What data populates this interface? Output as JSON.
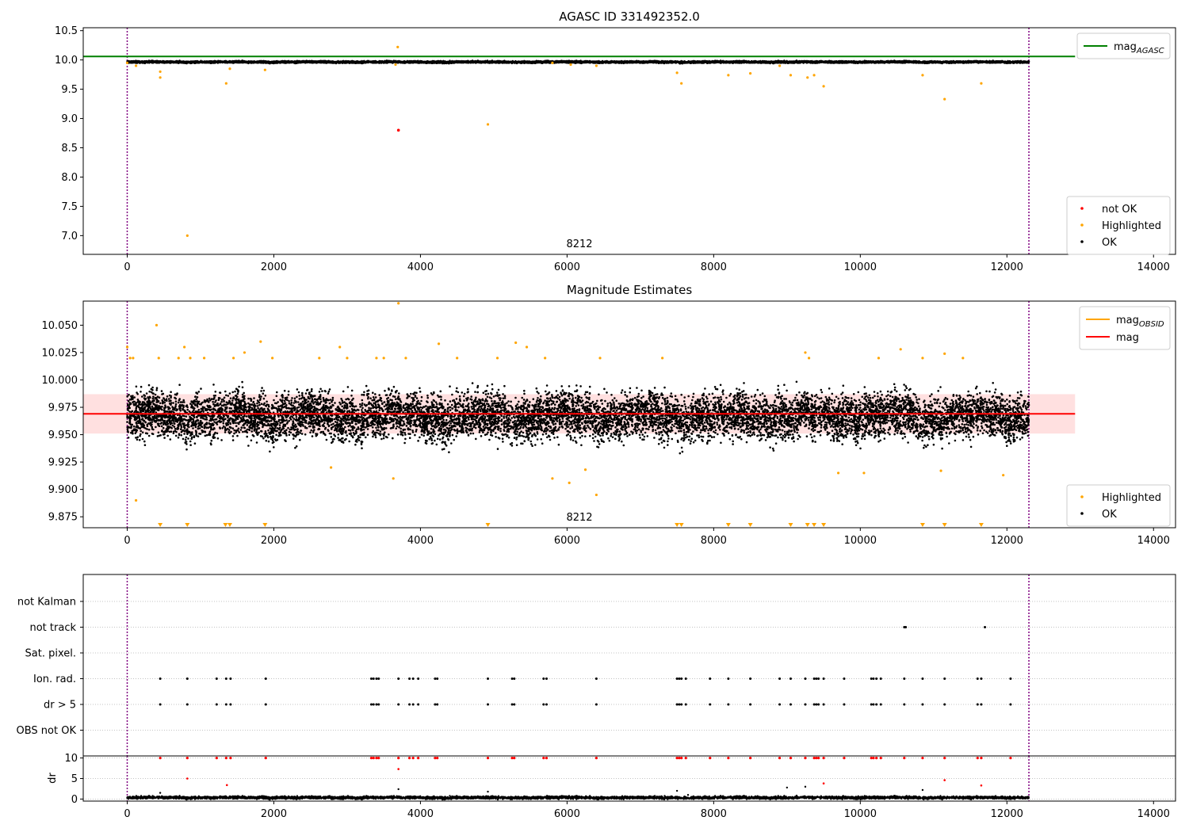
{
  "colors": {
    "ok": "#000000",
    "highlighted": "#ffa500",
    "not_ok": "#ff0000",
    "agasc_line": "#008000",
    "mag_line": "#ff0000",
    "mag_band": "#ffcccc",
    "obsid_line": "#ffa500",
    "vline": "#800080",
    "grid": "#b0b0b0"
  },
  "chart_data": [
    {
      "type": "scatter",
      "title": "AGASC ID 331492352.0",
      "xlim": [
        -600,
        14300
      ],
      "ylim": [
        6.68,
        10.55
      ],
      "xticks": [
        0,
        2000,
        4000,
        6000,
        8000,
        10000,
        12000,
        14000
      ],
      "yticks": [
        7.0,
        7.5,
        8.0,
        8.5,
        9.0,
        9.5,
        10.0,
        10.5
      ],
      "ytick_labels": [
        "7.0",
        "7.5",
        "8.0",
        "8.5",
        "9.0",
        "9.5",
        "10.0",
        "10.5"
      ],
      "annotation": {
        "text": "8212",
        "x": 6150,
        "y": 6.8
      },
      "vlines": [
        0,
        12300
      ],
      "mag_agasc": 10.06,
      "ok_band": {
        "x": [
          0,
          12300
        ],
        "center": 9.965,
        "spread": 0.025
      },
      "highlighted": [
        [
          0,
          9.95
        ],
        [
          120,
          9.9
        ],
        [
          450,
          9.8
        ],
        [
          450,
          9.7
        ],
        [
          820,
          7.0
        ],
        [
          1350,
          9.6
        ],
        [
          1400,
          9.85
        ],
        [
          1880,
          9.83
        ],
        [
          3690,
          10.22
        ],
        [
          3660,
          9.92
        ],
        [
          4920,
          8.9
        ],
        [
          5800,
          9.95
        ],
        [
          6050,
          9.92
        ],
        [
          6400,
          9.9
        ],
        [
          7500,
          9.78
        ],
        [
          7560,
          9.6
        ],
        [
          8200,
          9.74
        ],
        [
          8500,
          9.77
        ],
        [
          8900,
          9.9
        ],
        [
          9050,
          9.74
        ],
        [
          9280,
          9.7
        ],
        [
          9370,
          9.74
        ],
        [
          9500,
          9.55
        ],
        [
          10850,
          9.74
        ],
        [
          11150,
          9.33
        ],
        [
          11650,
          9.6
        ]
      ],
      "not_ok": [
        [
          3700,
          8.8
        ]
      ],
      "legend_lines": [
        {
          "label_main": "mag",
          "label_sub": "AGASC",
          "color": "#008000"
        }
      ],
      "legend_points": [
        {
          "label": "not OK",
          "color": "#ff0000"
        },
        {
          "label": "Highlighted",
          "color": "#ffa500"
        },
        {
          "label": "OK",
          "color": "#000000"
        }
      ]
    },
    {
      "type": "scatter",
      "title": "Magnitude Estimates",
      "xlim": [
        -600,
        14300
      ],
      "ylim": [
        9.865,
        10.072
      ],
      "xticks": [
        0,
        2000,
        4000,
        6000,
        8000,
        10000,
        12000,
        14000
      ],
      "yticks": [
        9.875,
        9.9,
        9.925,
        9.95,
        9.975,
        10.0,
        10.025,
        10.05
      ],
      "ytick_labels": [
        "9.875",
        "9.900",
        "9.925",
        "9.950",
        "9.975",
        "10.000",
        "10.025",
        "10.050"
      ],
      "annotation": {
        "text": "8212",
        "x": 6150,
        "y": 9.874
      },
      "vlines": [
        0,
        12300
      ],
      "mag": 9.969,
      "mag_band": [
        9.951,
        9.987
      ],
      "ok_band": {
        "x": [
          0,
          12300
        ],
        "center": 9.967,
        "spread": 0.018
      },
      "highlighted": [
        [
          0,
          10.03
        ],
        [
          40,
          10.02
        ],
        [
          80,
          10.02
        ],
        [
          120,
          9.89
        ],
        [
          400,
          10.05
        ],
        [
          430,
          10.02
        ],
        [
          700,
          10.02
        ],
        [
          780,
          10.03
        ],
        [
          860,
          10.02
        ],
        [
          1050,
          10.02
        ],
        [
          1450,
          10.02
        ],
        [
          1600,
          10.025
        ],
        [
          1820,
          10.035
        ],
        [
          1980,
          10.02
        ],
        [
          2620,
          10.02
        ],
        [
          2780,
          9.92
        ],
        [
          2900,
          10.03
        ],
        [
          3000,
          10.02
        ],
        [
          3400,
          10.02
        ],
        [
          3500,
          10.02
        ],
        [
          3630,
          9.91
        ],
        [
          3700,
          10.07
        ],
        [
          3800,
          10.02
        ],
        [
          4250,
          10.033
        ],
        [
          4500,
          10.02
        ],
        [
          5050,
          10.02
        ],
        [
          5300,
          10.034
        ],
        [
          5450,
          10.03
        ],
        [
          5700,
          10.02
        ],
        [
          5800,
          9.91
        ],
        [
          6030,
          9.906
        ],
        [
          6250,
          9.918
        ],
        [
          6400,
          9.895
        ],
        [
          6450,
          10.02
        ],
        [
          7300,
          10.02
        ],
        [
          9250,
          10.025
        ],
        [
          9300,
          10.02
        ],
        [
          9700,
          9.915
        ],
        [
          10050,
          9.915
        ],
        [
          10250,
          10.02
        ],
        [
          10550,
          10.028
        ],
        [
          10850,
          10.02
        ],
        [
          11100,
          9.917
        ],
        [
          11150,
          10.024
        ],
        [
          11400,
          10.02
        ],
        [
          11950,
          9.913
        ]
      ],
      "highlighted_below": [
        450,
        820,
        1340,
        1400,
        1880,
        4920,
        7500,
        7560,
        8200,
        8500,
        9050,
        9280,
        9370,
        9500,
        10850,
        11150,
        11650
      ],
      "legend_lines": [
        {
          "label_main": "mag",
          "label_sub": "OBSID",
          "color": "#ffa500"
        },
        {
          "label_main": "mag",
          "label_sub": "",
          "color": "#ff0000"
        }
      ],
      "legend_points": [
        {
          "label": "Highlighted",
          "color": "#ffa500"
        },
        {
          "label": "OK",
          "color": "#000000"
        }
      ]
    },
    {
      "type": "scatter",
      "title": "",
      "xlim": [
        -600,
        14300
      ],
      "categories": [
        "not Kalman",
        "not track",
        "Sat. pixel.",
        "Ion. rad.",
        "dr > 5",
        "OBS not OK"
      ],
      "vlines": [
        0,
        12300
      ],
      "events": {
        "not track": [
          10600,
          10620,
          11700
        ],
        "Ion. rad.": [
          450,
          820,
          1220,
          1350,
          1410,
          1890,
          3330,
          3360,
          3400,
          3430,
          3700,
          3850,
          3900,
          3970,
          4200,
          4230,
          4920,
          5250,
          5280,
          5680,
          5720,
          6400,
          7500,
          7530,
          7560,
          7620,
          7950,
          8200,
          8500,
          8900,
          9050,
          9250,
          9370,
          9400,
          9430,
          9500,
          9780,
          10150,
          10180,
          10220,
          10280,
          10600,
          10850,
          11150,
          11600,
          11650,
          12050
        ],
        "dr > 5": [
          450,
          820,
          1220,
          1350,
          1410,
          1890,
          3330,
          3360,
          3400,
          3430,
          3700,
          3850,
          3900,
          3970,
          4200,
          4230,
          4920,
          5250,
          5280,
          5680,
          5720,
          6400,
          7500,
          7530,
          7560,
          7620,
          7950,
          8200,
          8500,
          8900,
          9050,
          9250,
          9370,
          9400,
          9430,
          9500,
          9780,
          10150,
          10180,
          10220,
          10280,
          10600,
          10850,
          11150,
          11600,
          11650,
          12050
        ]
      }
    },
    {
      "type": "scatter",
      "title": "",
      "ylabel": "dr",
      "xlim": [
        -600,
        14300
      ],
      "ylim": [
        -0.5,
        10.5
      ],
      "xticks": [
        0,
        2000,
        4000,
        6000,
        8000,
        10000,
        12000,
        14000
      ],
      "yticks": [
        0,
        5,
        10
      ],
      "vlines": [
        0,
        12300
      ],
      "ok_band": {
        "x": [
          0,
          12300
        ],
        "center": 0.35,
        "spread": 0.3
      },
      "not_ok_at_10": [
        450,
        820,
        1220,
        1350,
        1410,
        1890,
        3330,
        3360,
        3400,
        3430,
        3700,
        3850,
        3900,
        3970,
        4200,
        4230,
        4920,
        5250,
        5280,
        5680,
        5720,
        6400,
        7500,
        7530,
        7560,
        7620,
        7950,
        8200,
        8500,
        8900,
        9050,
        9250,
        9370,
        9400,
        9430,
        9500,
        9780,
        10150,
        10180,
        10220,
        10280,
        10600,
        10850,
        11150,
        11600,
        11650,
        12050
      ],
      "not_ok_other": [
        [
          3700,
          7.3
        ],
        [
          820,
          5.0
        ],
        [
          1360,
          3.4
        ],
        [
          11150,
          4.6
        ],
        [
          9500,
          3.8
        ],
        [
          11650,
          3.3
        ]
      ],
      "ok_outliers": [
        [
          450,
          1.5
        ],
        [
          3700,
          2.4
        ],
        [
          4920,
          1.8
        ],
        [
          7500,
          2.0
        ],
        [
          9000,
          2.8
        ],
        [
          9250,
          3.0
        ],
        [
          10850,
          2.2
        ],
        [
          7650,
          1.0
        ]
      ]
    }
  ]
}
